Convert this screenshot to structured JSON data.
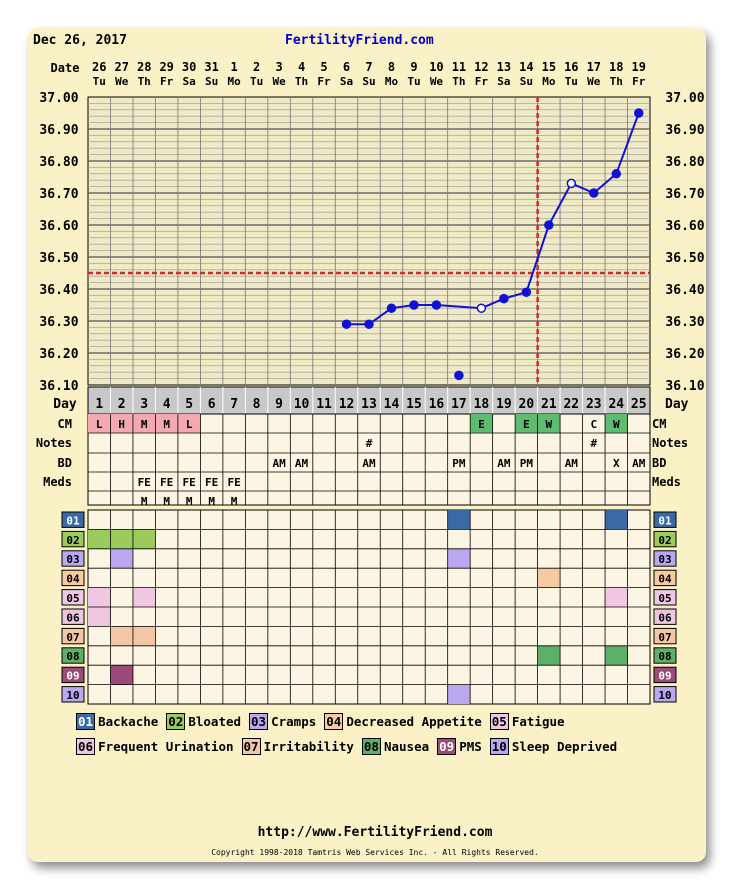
{
  "header": {
    "date": "Dec 26, 2017",
    "site": "FertilityFriend.com"
  },
  "footer": {
    "url": "http://www.FertilityFriend.com",
    "copyright": "Copyright 1998-2018 Tamtris Web Services Inc. - All Rights Reserved."
  },
  "labels": {
    "date": "Date",
    "day": "Day",
    "cm": "CM",
    "notes": "Notes",
    "bd": "BD",
    "meds": "Meds"
  },
  "chart_data": {
    "type": "line",
    "ylim": [
      36.1,
      37.0
    ],
    "yticks": [
      "37.00",
      "36.90",
      "36.80",
      "36.70",
      "36.60",
      "36.50",
      "36.40",
      "36.30",
      "36.20",
      "36.10"
    ],
    "dates": [
      "26",
      "27",
      "28",
      "29",
      "30",
      "31",
      "1",
      "2",
      "3",
      "4",
      "5",
      "6",
      "7",
      "8",
      "9",
      "10",
      "11",
      "12",
      "13",
      "14",
      "15",
      "16",
      "17",
      "18",
      "19"
    ],
    "weekdays": [
      "Tu",
      "We",
      "Th",
      "Fr",
      "Sa",
      "Su",
      "Mo",
      "Tu",
      "We",
      "Th",
      "Fr",
      "Sa",
      "Su",
      "Mo",
      "Tu",
      "We",
      "Th",
      "Fr",
      "Sa",
      "Su",
      "Mo",
      "Tu",
      "We",
      "Th",
      "Fr"
    ],
    "days": [
      "1",
      "2",
      "3",
      "4",
      "5",
      "6",
      "7",
      "8",
      "9",
      "10",
      "11",
      "12",
      "13",
      "14",
      "15",
      "16",
      "17",
      "18",
      "19",
      "20",
      "21",
      "22",
      "23",
      "24",
      "25"
    ],
    "coverline": 36.45,
    "ovulation_day": 20,
    "temps": [
      {
        "day": 12,
        "temp": 36.29,
        "type": "normal"
      },
      {
        "day": 13,
        "temp": 36.29,
        "type": "normal"
      },
      {
        "day": 14,
        "temp": 36.34,
        "type": "normal"
      },
      {
        "day": 15,
        "temp": 36.35,
        "type": "normal"
      },
      {
        "day": 16,
        "temp": 36.35,
        "type": "normal"
      },
      {
        "day": 17,
        "temp": 36.13,
        "type": "discarded"
      },
      {
        "day": 18,
        "temp": 36.34,
        "type": "open"
      },
      {
        "day": 19,
        "temp": 36.37,
        "type": "normal"
      },
      {
        "day": 20,
        "temp": 36.39,
        "type": "normal"
      },
      {
        "day": 21,
        "temp": 36.6,
        "type": "normal"
      },
      {
        "day": 22,
        "temp": 36.73,
        "type": "open"
      },
      {
        "day": 23,
        "temp": 36.7,
        "type": "normal"
      },
      {
        "day": 24,
        "temp": 36.76,
        "type": "normal"
      },
      {
        "day": 25,
        "temp": 36.95,
        "type": "normal"
      }
    ],
    "cm": [
      {
        "day": 1,
        "code": "L",
        "color": "#f4a9b1"
      },
      {
        "day": 2,
        "code": "H",
        "color": "#f4a9b1"
      },
      {
        "day": 3,
        "code": "M",
        "color": "#f4a9b1"
      },
      {
        "day": 4,
        "code": "M",
        "color": "#f4a9b1"
      },
      {
        "day": 5,
        "code": "L",
        "color": "#f4a9b1"
      },
      {
        "day": 18,
        "code": "E",
        "color": "#5fbb6e"
      },
      {
        "day": 20,
        "code": "E",
        "color": "#5fbb6e"
      },
      {
        "day": 21,
        "code": "W",
        "color": "#5fbb6e"
      },
      {
        "day": 23,
        "code": "C",
        "color": ""
      },
      {
        "day": 24,
        "code": "W",
        "color": "#5fbb6e"
      }
    ],
    "notes": [
      {
        "day": 13,
        "text": "#"
      },
      {
        "day": 23,
        "text": "#"
      }
    ],
    "bd": [
      {
        "day": 9,
        "text": "AM"
      },
      {
        "day": 10,
        "text": "AM"
      },
      {
        "day": 13,
        "text": "AM"
      },
      {
        "day": 17,
        "text": "PM"
      },
      {
        "day": 19,
        "text": "AM"
      },
      {
        "day": 20,
        "text": "PM"
      },
      {
        "day": 22,
        "text": "AM"
      },
      {
        "day": 24,
        "text": "X"
      },
      {
        "day": 25,
        "text": "AM"
      }
    ],
    "meds": [
      {
        "day": 3,
        "row": 1,
        "text": "FE"
      },
      {
        "day": 4,
        "row": 1,
        "text": "FE"
      },
      {
        "day": 5,
        "row": 1,
        "text": "FE"
      },
      {
        "day": 6,
        "row": 1,
        "text": "FE"
      },
      {
        "day": 7,
        "row": 1,
        "text": "FE"
      },
      {
        "day": 3,
        "row": 2,
        "text": "M"
      },
      {
        "day": 4,
        "row": 2,
        "text": "M"
      },
      {
        "day": 5,
        "row": 2,
        "text": "M"
      },
      {
        "day": 6,
        "row": 2,
        "text": "M"
      },
      {
        "day": 7,
        "row": 2,
        "text": "M"
      }
    ],
    "symptoms": [
      {
        "code": "01",
        "label": "Backache",
        "color": "#3a6aa6",
        "text": "#ffffff",
        "days": [
          17,
          24
        ]
      },
      {
        "code": "02",
        "label": "Bloated",
        "color": "#9bcb5a",
        "text": "#000000",
        "days": [
          1,
          2,
          3
        ]
      },
      {
        "code": "03",
        "label": "Cramps",
        "color": "#b9a7f0",
        "text": "#000000",
        "days": [
          2,
          17
        ]
      },
      {
        "code": "04",
        "label": "Decreased Appetite",
        "color": "#f5c9a1",
        "text": "#000000",
        "days": [
          21
        ]
      },
      {
        "code": "05",
        "label": "Fatigue",
        "color": "#f1c6e3",
        "text": "#000000",
        "days": [
          1,
          3,
          24
        ]
      },
      {
        "code": "06",
        "label": "Frequent Urination",
        "color": "#efc6df",
        "text": "#000000",
        "days": [
          1
        ]
      },
      {
        "code": "07",
        "label": "Irritability",
        "color": "#f3c7a5",
        "text": "#000000",
        "days": [
          2,
          3
        ]
      },
      {
        "code": "08",
        "label": "Nausea",
        "color": "#5fae6a",
        "text": "#000000",
        "days": [
          21,
          24
        ]
      },
      {
        "code": "09",
        "label": "PMS",
        "color": "#9b4a7a",
        "text": "#ffffff",
        "days": [
          2
        ]
      },
      {
        "code": "10",
        "label": "Sleep Deprived",
        "color": "#b9a7f0",
        "text": "#000000",
        "days": [
          17
        ]
      }
    ]
  }
}
